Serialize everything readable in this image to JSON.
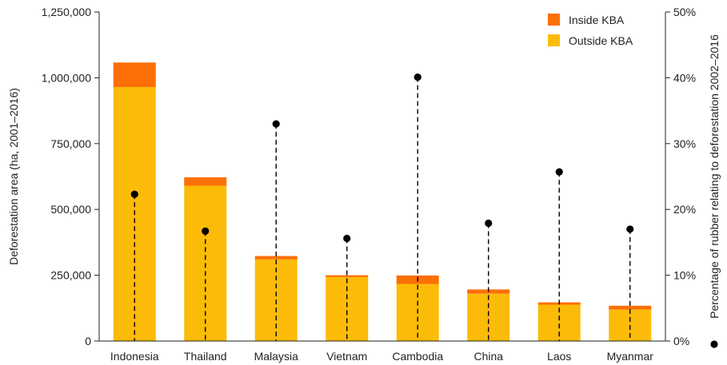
{
  "chart_data": {
    "type": "bar",
    "categories": [
      "Indonesia",
      "Thailand",
      "Malaysia",
      "Vietnam",
      "Cambodia",
      "China",
      "Laos",
      "Myanmar"
    ],
    "series": [
      {
        "name": "Outside KBA",
        "values": [
          965000,
          590000,
          310000,
          243000,
          217000,
          180000,
          138000,
          120000
        ],
        "color": "#FBBB08"
      },
      {
        "name": "Inside KBA",
        "values": [
          93000,
          32000,
          13000,
          7000,
          32000,
          16000,
          9000,
          14000
        ],
        "color": "#FC6F06"
      }
    ],
    "rubber_percentage": {
      "values": [
        22.3,
        16.7,
        33.0,
        15.6,
        40.1,
        17.9,
        25.7,
        17.0
      ],
      "marker": "dot",
      "line_style": "dashed",
      "color": "#000000"
    },
    "stacked": true,
    "ylabel": "Deforestation area (ha, 2001–2016)",
    "ylim": [
      0,
      1250000
    ],
    "yticks": [
      0,
      250000,
      500000,
      750000,
      1000000,
      1250000
    ],
    "ytick_labels": [
      "0",
      "250,000",
      "500,000",
      "750,000",
      "1,000,000",
      "1,250,000"
    ],
    "y2label": "Percentage of rubber relating to deforestation 2002–2016",
    "y2lim": [
      0,
      50
    ],
    "y2ticks": [
      0,
      10,
      20,
      30,
      40,
      50
    ],
    "y2tick_labels": [
      "0%",
      "10%",
      "20%",
      "30%",
      "40%",
      "50%"
    ],
    "legend_position": "top-right",
    "grid": false
  }
}
